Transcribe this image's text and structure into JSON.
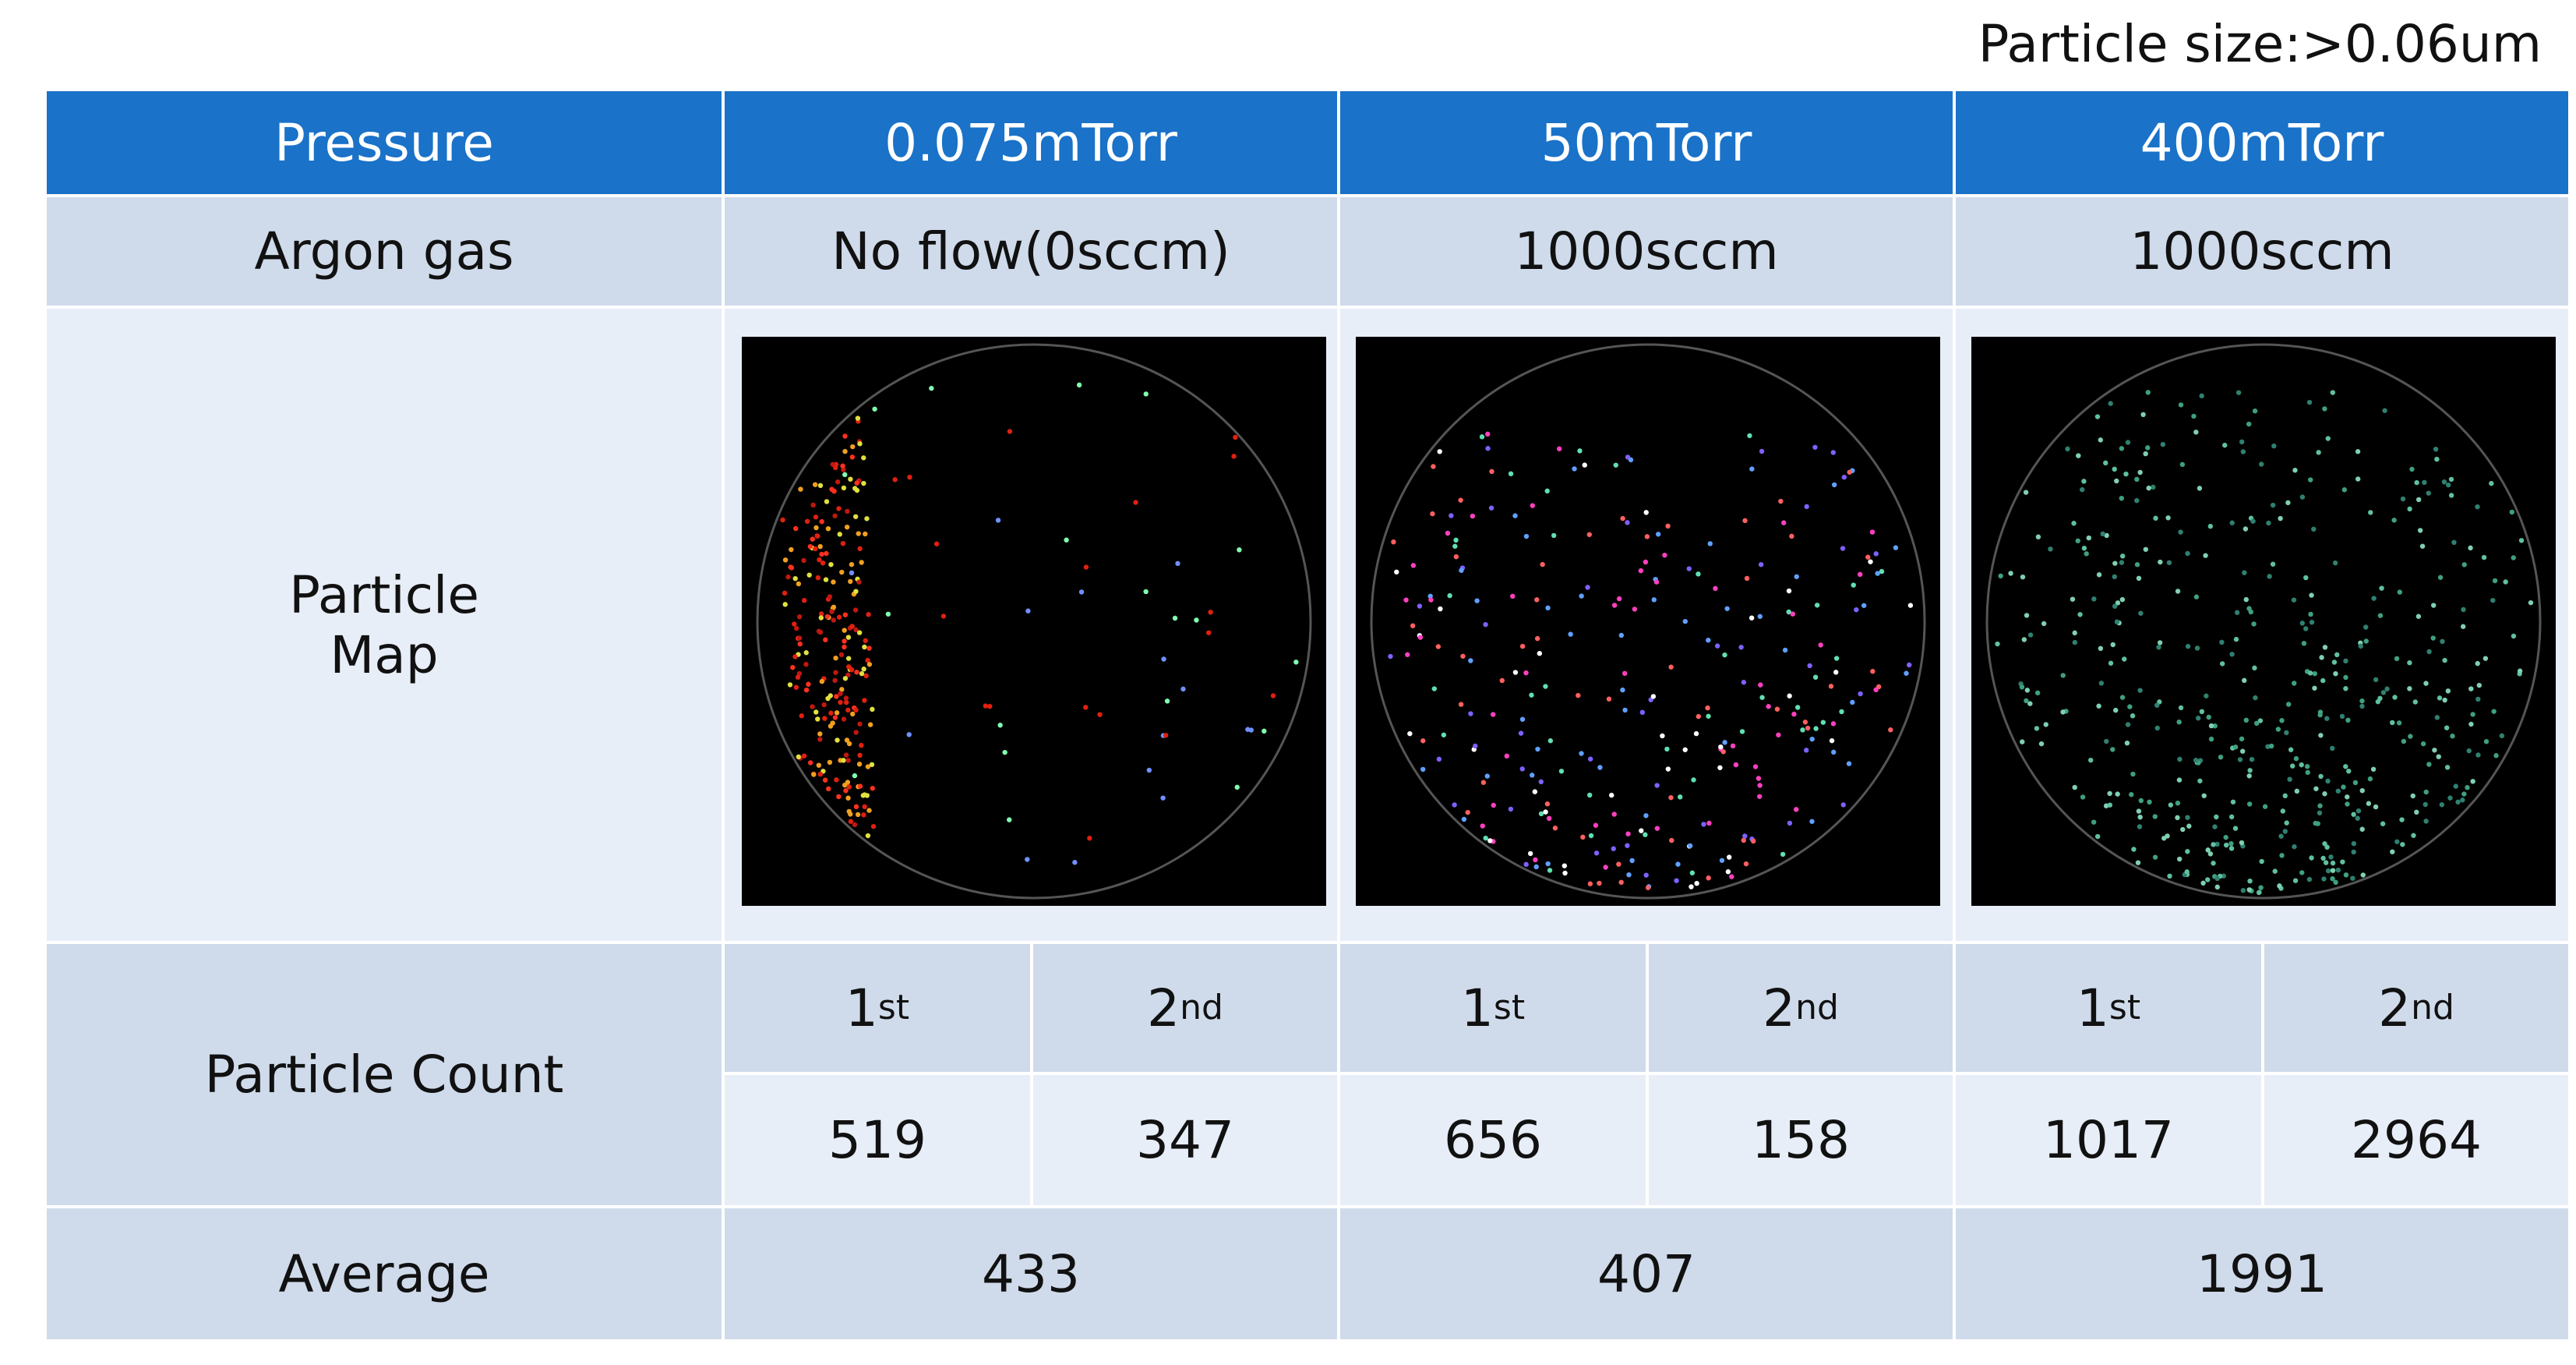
{
  "note": "Particle size:>0.06um",
  "table": {
    "header": [
      "Pressure",
      "0.075mTorr",
      "50mTorr",
      "400mTorr"
    ],
    "argon": {
      "label": "Argon gas",
      "values": [
        "No flow(0sccm)",
        "1000sccm",
        "1000sccm"
      ]
    },
    "map": {
      "label": "Particle Map"
    },
    "count": {
      "label": "Particle Count",
      "runs": [
        {
          "base": "1",
          "sup": "st"
        },
        {
          "base": "2",
          "sup": "nd"
        },
        {
          "base": "1",
          "sup": "st"
        },
        {
          "base": "2",
          "sup": "nd"
        },
        {
          "base": "1",
          "sup": "st"
        },
        {
          "base": "2",
          "sup": "nd"
        }
      ],
      "values": [
        519,
        347,
        656,
        158,
        1017,
        2964
      ]
    },
    "average": {
      "label": "Average",
      "values": [
        433,
        407,
        1991
      ]
    }
  }
}
